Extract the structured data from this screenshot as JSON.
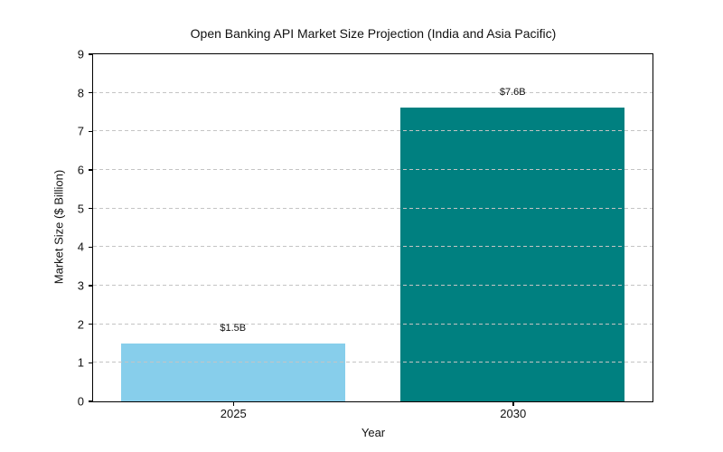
{
  "chart_data": {
    "type": "bar",
    "title": "Open Banking API Market Size Projection (India and Asia Pacific)",
    "xlabel": "Year",
    "ylabel": "Market Size ($ Billion)",
    "categories": [
      "2025",
      "2030"
    ],
    "values": [
      1.5,
      7.6
    ],
    "bar_labels": [
      "$1.5B",
      "$7.6B"
    ],
    "bar_colors": [
      "#87CEEB",
      "#008080"
    ],
    "ylim": [
      0,
      9
    ],
    "yticks": [
      0,
      1,
      2,
      3,
      4,
      5,
      6,
      7,
      8,
      9
    ],
    "grid": {
      "axis": "y",
      "style": "dashed",
      "color": "#c4c4c4",
      "values": [
        1,
        2,
        3,
        4,
        5,
        6,
        7,
        8
      ],
      "drawn_over_bars": true
    },
    "legend": "none",
    "background": "#ffffff",
    "spine_color": "#000000"
  }
}
